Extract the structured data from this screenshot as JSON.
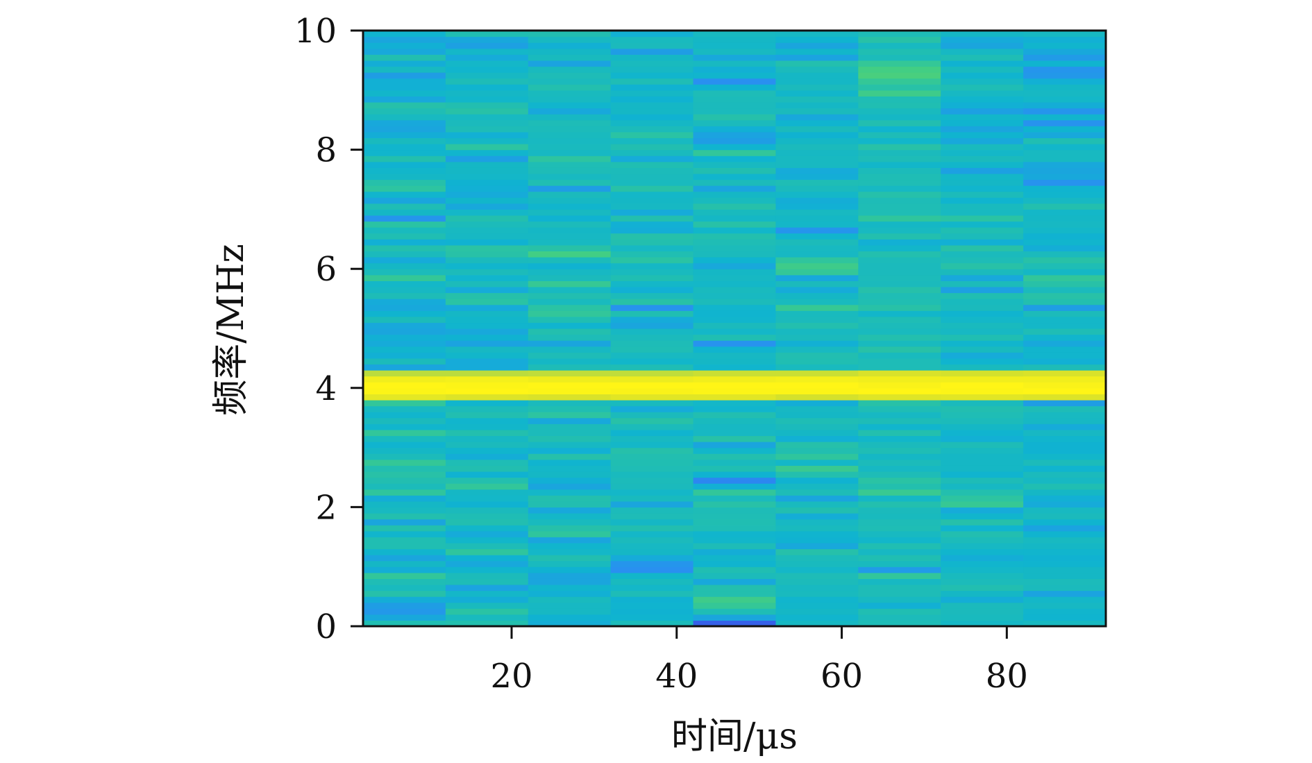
{
  "chart_data": {
    "type": "heatmap",
    "title": "",
    "xlabel": "时间/μs",
    "ylabel": "频率/MHz",
    "xlim": [
      2,
      92
    ],
    "ylim": [
      0,
      10
    ],
    "x_ticks": [
      20,
      40,
      60,
      80
    ],
    "y_ticks": [
      0,
      2,
      4,
      6,
      8,
      10
    ],
    "x_tick_labels": [
      "20",
      "40",
      "60",
      "80"
    ],
    "y_tick_labels": [
      "0",
      "2",
      "4",
      "6",
      "8",
      "10"
    ],
    "colormap": [
      "#3f3fe0",
      "#2a8ef2",
      "#0fb4d0",
      "#23bfae",
      "#45cf80",
      "#8fd35a",
      "#d8e22a",
      "#fff516"
    ],
    "grid": false,
    "time_bins": [
      2,
      12,
      22,
      32,
      42,
      52,
      62,
      72,
      82,
      92
    ],
    "frequency_bins": [
      0,
      0.1,
      0.2,
      0.3,
      0.4,
      0.5,
      0.6,
      0.7,
      0.8,
      0.9,
      1.0,
      1.1,
      1.2,
      1.3,
      1.4,
      1.5,
      1.6,
      1.7,
      1.8,
      1.9,
      2.0,
      2.1,
      2.2,
      2.3,
      2.4,
      2.5,
      2.6,
      2.7,
      2.8,
      2.9,
      3.0,
      3.1,
      3.2,
      3.3,
      3.4,
      3.5,
      3.6,
      3.7,
      3.8,
      3.9,
      4.0,
      4.1,
      4.2,
      4.3,
      4.4,
      4.5,
      4.6,
      4.7,
      4.8,
      4.9,
      5.0,
      5.1,
      5.2,
      5.3,
      5.4,
      5.5,
      5.6,
      5.7,
      5.8,
      5.9,
      6.0,
      6.1,
      6.2,
      6.3,
      6.4,
      6.5,
      6.6,
      6.7,
      6.8,
      6.9,
      7.0,
      7.1,
      7.2,
      7.3,
      7.4,
      7.5,
      7.6,
      7.7,
      7.8,
      7.9,
      8.0,
      8.1,
      8.2,
      8.3,
      8.4,
      8.5,
      8.6,
      8.7,
      8.8,
      8.9,
      9.0,
      9.1,
      9.2,
      9.3,
      9.4,
      9.5,
      9.6,
      9.7,
      9.8,
      9.9,
      10.0
    ],
    "intensity": [
      [
        0.41,
        0.24,
        0.18,
        0.2,
        0.26,
        0.44,
        0.36,
        0.4,
        0.49,
        0.26,
        0.33,
        0.23,
        0.3,
        0.41,
        0.41,
        0.3,
        0.43,
        0.23,
        0.43,
        0.35,
        0.33,
        0.26,
        0.48,
        0.38,
        0.42,
        0.45,
        0.42,
        0.5,
        0.38,
        0.33,
        0.29,
        0.36,
        0.49,
        0.3,
        0.37,
        0.3,
        0.35,
        0.49,
        0.9,
        0.99,
        1.0,
        0.95,
        0.8,
        0.23,
        0.38,
        0.27,
        0.3,
        0.25,
        0.27,
        0.23,
        0.24,
        0.38,
        0.29,
        0.24,
        0.25,
        0.39,
        0.34,
        0.32,
        0.5,
        0.38,
        0.33,
        0.25,
        0.37,
        0.43,
        0.27,
        0.41,
        0.36,
        0.46,
        0.17,
        0.33,
        0.4,
        0.23,
        0.3,
        0.47,
        0.44,
        0.33,
        0.31,
        0.28,
        0.43,
        0.3,
        0.3,
        0.36,
        0.26,
        0.23,
        0.24,
        0.35,
        0.4,
        0.44,
        0.24,
        0.31,
        0.27,
        0.27,
        0.2,
        0.35,
        0.26,
        0.42,
        0.24,
        0.27,
        0.23,
        0.29
      ],
      [
        0.43,
        0.36,
        0.46,
        0.36,
        0.26,
        0.32,
        0.22,
        0.39,
        0.38,
        0.3,
        0.24,
        0.28,
        0.48,
        0.39,
        0.31,
        0.25,
        0.31,
        0.42,
        0.4,
        0.37,
        0.28,
        0.32,
        0.33,
        0.49,
        0.43,
        0.28,
        0.42,
        0.4,
        0.26,
        0.3,
        0.37,
        0.34,
        0.43,
        0.31,
        0.3,
        0.42,
        0.38,
        0.3,
        0.87,
        1.0,
        0.99,
        0.96,
        0.8,
        0.25,
        0.25,
        0.31,
        0.34,
        0.22,
        0.28,
        0.24,
        0.3,
        0.31,
        0.33,
        0.25,
        0.46,
        0.44,
        0.25,
        0.38,
        0.3,
        0.38,
        0.3,
        0.37,
        0.45,
        0.46,
        0.28,
        0.34,
        0.35,
        0.38,
        0.43,
        0.32,
        0.24,
        0.31,
        0.25,
        0.27,
        0.28,
        0.32,
        0.33,
        0.33,
        0.21,
        0.3,
        0.47,
        0.33,
        0.27,
        0.39,
        0.37,
        0.35,
        0.45,
        0.42,
        0.31,
        0.33,
        0.29,
        0.39,
        0.34,
        0.3,
        0.32,
        0.25,
        0.32,
        0.21,
        0.24,
        0.41
      ],
      [
        0.26,
        0.28,
        0.34,
        0.34,
        0.36,
        0.27,
        0.3,
        0.23,
        0.23,
        0.28,
        0.36,
        0.42,
        0.32,
        0.3,
        0.23,
        0.48,
        0.44,
        0.36,
        0.32,
        0.24,
        0.42,
        0.43,
        0.32,
        0.23,
        0.27,
        0.33,
        0.32,
        0.29,
        0.44,
        0.27,
        0.34,
        0.42,
        0.38,
        0.38,
        0.24,
        0.47,
        0.41,
        0.37,
        0.86,
        0.99,
        1.0,
        0.94,
        0.81,
        0.39,
        0.33,
        0.39,
        0.34,
        0.23,
        0.39,
        0.43,
        0.29,
        0.41,
        0.49,
        0.46,
        0.36,
        0.42,
        0.35,
        0.51,
        0.37,
        0.34,
        0.28,
        0.38,
        0.56,
        0.45,
        0.35,
        0.34,
        0.33,
        0.38,
        0.28,
        0.35,
        0.3,
        0.34,
        0.37,
        0.2,
        0.41,
        0.35,
        0.39,
        0.4,
        0.47,
        0.34,
        0.36,
        0.35,
        0.36,
        0.38,
        0.39,
        0.34,
        0.24,
        0.3,
        0.35,
        0.36,
        0.43,
        0.37,
        0.39,
        0.36,
        0.22,
        0.36,
        0.33,
        0.27,
        0.35,
        0.42
      ],
      [
        0.38,
        0.29,
        0.28,
        0.29,
        0.28,
        0.39,
        0.32,
        0.36,
        0.31,
        0.15,
        0.17,
        0.25,
        0.33,
        0.34,
        0.37,
        0.32,
        0.42,
        0.33,
        0.39,
        0.38,
        0.23,
        0.36,
        0.32,
        0.37,
        0.38,
        0.36,
        0.4,
        0.41,
        0.42,
        0.44,
        0.32,
        0.35,
        0.29,
        0.38,
        0.45,
        0.37,
        0.25,
        0.36,
        0.89,
        0.98,
        1.0,
        0.93,
        0.81,
        0.4,
        0.31,
        0.35,
        0.4,
        0.39,
        0.37,
        0.34,
        0.23,
        0.25,
        0.41,
        0.16,
        0.45,
        0.38,
        0.27,
        0.32,
        0.41,
        0.36,
        0.33,
        0.46,
        0.41,
        0.34,
        0.43,
        0.44,
        0.26,
        0.27,
        0.43,
        0.25,
        0.34,
        0.33,
        0.32,
        0.45,
        0.36,
        0.37,
        0.38,
        0.41,
        0.25,
        0.36,
        0.42,
        0.35,
        0.46,
        0.38,
        0.33,
        0.28,
        0.33,
        0.33,
        0.28,
        0.33,
        0.28,
        0.4,
        0.3,
        0.34,
        0.36,
        0.33,
        0.2,
        0.37,
        0.36,
        0.27
      ],
      [
        0.06,
        0.23,
        0.4,
        0.5,
        0.54,
        0.43,
        0.43,
        0.24,
        0.38,
        0.41,
        0.29,
        0.31,
        0.26,
        0.39,
        0.31,
        0.3,
        0.4,
        0.41,
        0.4,
        0.39,
        0.45,
        0.37,
        0.49,
        0.27,
        0.13,
        0.28,
        0.41,
        0.36,
        0.43,
        0.31,
        0.23,
        0.45,
        0.34,
        0.34,
        0.36,
        0.42,
        0.3,
        0.32,
        0.89,
        0.99,
        1.0,
        0.95,
        0.83,
        0.3,
        0.33,
        0.34,
        0.29,
        0.16,
        0.41,
        0.32,
        0.37,
        0.3,
        0.29,
        0.3,
        0.38,
        0.35,
        0.36,
        0.32,
        0.34,
        0.33,
        0.24,
        0.29,
        0.37,
        0.38,
        0.4,
        0.43,
        0.31,
        0.45,
        0.33,
        0.36,
        0.44,
        0.36,
        0.33,
        0.23,
        0.38,
        0.3,
        0.42,
        0.35,
        0.29,
        0.49,
        0.29,
        0.2,
        0.22,
        0.27,
        0.37,
        0.44,
        0.37,
        0.37,
        0.38,
        0.39,
        0.28,
        0.15,
        0.3,
        0.27,
        0.35,
        0.24,
        0.35,
        0.32,
        0.33,
        0.35
      ],
      [
        0.34,
        0.3,
        0.33,
        0.31,
        0.3,
        0.36,
        0.35,
        0.38,
        0.39,
        0.32,
        0.36,
        0.38,
        0.44,
        0.24,
        0.28,
        0.29,
        0.36,
        0.34,
        0.26,
        0.42,
        0.36,
        0.23,
        0.39,
        0.34,
        0.28,
        0.43,
        0.52,
        0.32,
        0.48,
        0.42,
        0.44,
        0.27,
        0.33,
        0.37,
        0.4,
        0.33,
        0.34,
        0.26,
        0.85,
        0.99,
        1.0,
        0.96,
        0.83,
        0.36,
        0.41,
        0.42,
        0.35,
        0.27,
        0.37,
        0.35,
        0.43,
        0.37,
        0.36,
        0.51,
        0.36,
        0.33,
        0.25,
        0.37,
        0.24,
        0.5,
        0.54,
        0.48,
        0.34,
        0.35,
        0.38,
        0.3,
        0.17,
        0.32,
        0.33,
        0.35,
        0.27,
        0.26,
        0.32,
        0.37,
        0.4,
        0.26,
        0.25,
        0.35,
        0.35,
        0.34,
        0.37,
        0.33,
        0.28,
        0.37,
        0.29,
        0.24,
        0.37,
        0.33,
        0.38,
        0.31,
        0.37,
        0.33,
        0.33,
        0.37,
        0.43,
        0.22,
        0.31,
        0.23,
        0.29,
        0.34
      ],
      [
        0.39,
        0.38,
        0.41,
        0.27,
        0.35,
        0.39,
        0.39,
        0.34,
        0.49,
        0.19,
        0.36,
        0.41,
        0.34,
        0.41,
        0.31,
        0.35,
        0.4,
        0.39,
        0.36,
        0.37,
        0.43,
        0.33,
        0.52,
        0.43,
        0.46,
        0.39,
        0.34,
        0.38,
        0.33,
        0.4,
        0.37,
        0.31,
        0.43,
        0.3,
        0.39,
        0.34,
        0.4,
        0.45,
        0.88,
        1.0,
        0.98,
        0.95,
        0.86,
        0.39,
        0.39,
        0.36,
        0.45,
        0.36,
        0.43,
        0.36,
        0.38,
        0.4,
        0.31,
        0.45,
        0.41,
        0.4,
        0.44,
        0.37,
        0.38,
        0.37,
        0.37,
        0.38,
        0.43,
        0.31,
        0.27,
        0.43,
        0.35,
        0.33,
        0.48,
        0.4,
        0.4,
        0.39,
        0.44,
        0.34,
        0.4,
        0.4,
        0.38,
        0.31,
        0.39,
        0.37,
        0.45,
        0.31,
        0.39,
        0.29,
        0.42,
        0.33,
        0.36,
        0.41,
        0.4,
        0.54,
        0.45,
        0.5,
        0.58,
        0.56,
        0.5,
        0.38,
        0.41,
        0.35,
        0.45,
        0.39
      ],
      [
        0.33,
        0.36,
        0.37,
        0.37,
        0.26,
        0.33,
        0.42,
        0.38,
        0.36,
        0.32,
        0.3,
        0.26,
        0.3,
        0.34,
        0.38,
        0.42,
        0.29,
        0.44,
        0.3,
        0.25,
        0.51,
        0.47,
        0.43,
        0.34,
        0.39,
        0.29,
        0.33,
        0.33,
        0.33,
        0.35,
        0.39,
        0.27,
        0.29,
        0.33,
        0.38,
        0.4,
        0.42,
        0.37,
        0.89,
        0.99,
        1.0,
        0.95,
        0.85,
        0.36,
        0.29,
        0.25,
        0.36,
        0.3,
        0.41,
        0.34,
        0.36,
        0.32,
        0.29,
        0.37,
        0.36,
        0.41,
        0.21,
        0.38,
        0.24,
        0.37,
        0.45,
        0.39,
        0.37,
        0.45,
        0.27,
        0.38,
        0.41,
        0.31,
        0.46,
        0.35,
        0.36,
        0.29,
        0.38,
        0.3,
        0.33,
        0.32,
        0.21,
        0.31,
        0.37,
        0.32,
        0.36,
        0.24,
        0.29,
        0.23,
        0.29,
        0.31,
        0.21,
        0.27,
        0.3,
        0.34,
        0.4,
        0.34,
        0.29,
        0.36,
        0.28,
        0.4,
        0.34,
        0.23,
        0.25,
        0.33
      ],
      [
        0.35,
        0.29,
        0.3,
        0.34,
        0.32,
        0.22,
        0.37,
        0.38,
        0.33,
        0.33,
        0.29,
        0.28,
        0.3,
        0.33,
        0.35,
        0.29,
        0.22,
        0.29,
        0.37,
        0.35,
        0.25,
        0.27,
        0.33,
        0.41,
        0.34,
        0.37,
        0.29,
        0.38,
        0.31,
        0.28,
        0.28,
        0.3,
        0.34,
        0.25,
        0.34,
        0.35,
        0.39,
        0.2,
        0.87,
        1.0,
        0.98,
        0.95,
        0.86,
        0.39,
        0.27,
        0.3,
        0.3,
        0.24,
        0.3,
        0.4,
        0.32,
        0.32,
        0.38,
        0.2,
        0.43,
        0.45,
        0.37,
        0.45,
        0.49,
        0.33,
        0.4,
        0.45,
        0.37,
        0.26,
        0.3,
        0.28,
        0.32,
        0.34,
        0.33,
        0.32,
        0.43,
        0.34,
        0.3,
        0.29,
        0.16,
        0.24,
        0.23,
        0.24,
        0.35,
        0.35,
        0.31,
        0.41,
        0.24,
        0.29,
        0.16,
        0.3,
        0.17,
        0.26,
        0.32,
        0.34,
        0.33,
        0.27,
        0.18,
        0.17,
        0.29,
        0.19,
        0.24,
        0.3,
        0.27,
        0.34
      ]
    ]
  }
}
